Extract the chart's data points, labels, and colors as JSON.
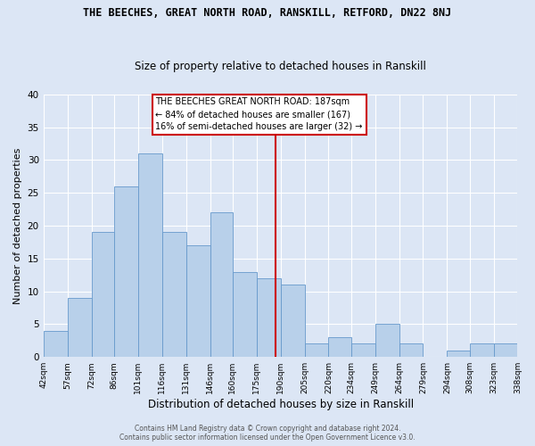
{
  "title": "THE BEECHES, GREAT NORTH ROAD, RANSKILL, RETFORD, DN22 8NJ",
  "subtitle": "Size of property relative to detached houses in Ranskill",
  "xlabel": "Distribution of detached houses by size in Ranskill",
  "ylabel": "Number of detached properties",
  "bar_values": [
    4,
    9,
    19,
    26,
    31,
    19,
    17,
    22,
    13,
    12,
    11,
    2,
    3,
    2,
    5,
    2,
    0,
    1,
    2,
    2
  ],
  "bin_edges": [
    42,
    57,
    72,
    86,
    101,
    116,
    131,
    146,
    160,
    175,
    190,
    205,
    220,
    234,
    249,
    264,
    279,
    294,
    308,
    323,
    338
  ],
  "tick_labels": [
    "42sqm",
    "57sqm",
    "72sqm",
    "86sqm",
    "101sqm",
    "116sqm",
    "131sqm",
    "146sqm",
    "160sqm",
    "175sqm",
    "190sqm",
    "205sqm",
    "220sqm",
    "234sqm",
    "249sqm",
    "264sqm",
    "279sqm",
    "294sqm",
    "308sqm",
    "323sqm",
    "338sqm"
  ],
  "bar_color": "#b8d0ea",
  "bar_edge_color": "#6699cc",
  "vline_x": 187,
  "vline_color": "#cc0000",
  "annotation_text": "THE BEECHES GREAT NORTH ROAD: 187sqm\n← 84% of detached houses are smaller (167)\n16% of semi-detached houses are larger (32) →",
  "annotation_box_color": "#ffffff",
  "annotation_box_edge": "#cc0000",
  "ylim": [
    0,
    40
  ],
  "yticks": [
    0,
    5,
    10,
    15,
    20,
    25,
    30,
    35,
    40
  ],
  "background_color": "#dce6f5",
  "grid_color": "#ffffff",
  "footer": "Contains HM Land Registry data © Crown copyright and database right 2024.\nContains public sector information licensed under the Open Government Licence v3.0.",
  "title_fontsize": 8.5,
  "subtitle_fontsize": 8.5,
  "xlabel_fontsize": 8.5,
  "ylabel_fontsize": 8.0,
  "tick_fontsize": 6.5,
  "footer_fontsize": 5.5
}
